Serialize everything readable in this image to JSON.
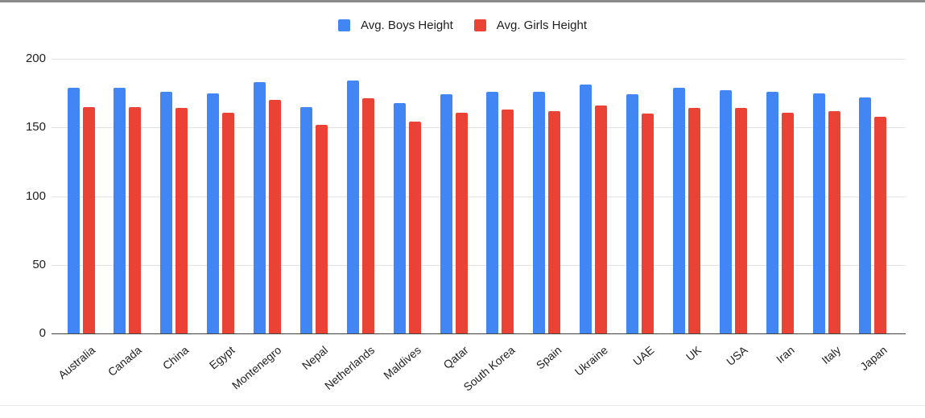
{
  "chart": {
    "legend": {
      "items": [
        {
          "label": "Avg. Boys Height",
          "color": "#4285F4"
        },
        {
          "label": "Avg. Girls Height",
          "color": "#EA4335"
        }
      ]
    }
  },
  "chart_data": {
    "type": "bar",
    "title": "",
    "xlabel": "",
    "ylabel": "",
    "categories": [
      "Australia",
      "Canada",
      "China",
      "Egypt",
      "Montenegro",
      "Nepal",
      "Netherlands",
      "Maldives",
      "Qatar",
      "South Korea",
      "Spain",
      "Ukraine",
      "UAE",
      "UK",
      "USA",
      "Iran",
      "Italy",
      "Japan"
    ],
    "series": [
      {
        "name": "Avg. Boys Height",
        "color": "#4285F4",
        "values": [
          179,
          179,
          176,
          175,
          183,
          165,
          184,
          168,
          174,
          176,
          176,
          181,
          174,
          179,
          177,
          176,
          175,
          172
        ]
      },
      {
        "name": "Avg. Girls Height",
        "color": "#EA4335",
        "values": [
          165,
          165,
          164,
          161,
          170,
          152,
          171,
          154,
          161,
          163,
          162,
          166,
          160,
          164,
          164,
          161,
          162,
          158
        ]
      }
    ],
    "ylim": [
      0,
      200
    ],
    "yticks": [
      0,
      50,
      100,
      150,
      200
    ],
    "grid": true,
    "legend_position": "top-center",
    "colors": {
      "grid_line": "#e3e3e3",
      "axis_line": "#424242",
      "tick_text": "#1f1f1f"
    }
  }
}
